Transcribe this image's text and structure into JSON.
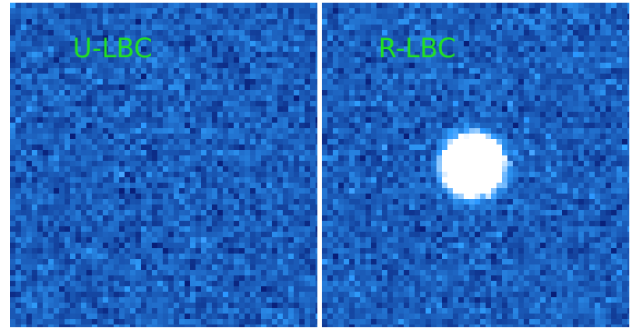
{
  "panels": [
    {
      "label": "U-LBC",
      "background_color": "#1a4fc0",
      "label_color": "#22e022",
      "source_visible": false
    },
    {
      "label": "R-LBC",
      "background_color": "#1a4fc0",
      "label_color": "#22e022",
      "source_visible": true,
      "source_color": "#ffffff"
    }
  ]
}
